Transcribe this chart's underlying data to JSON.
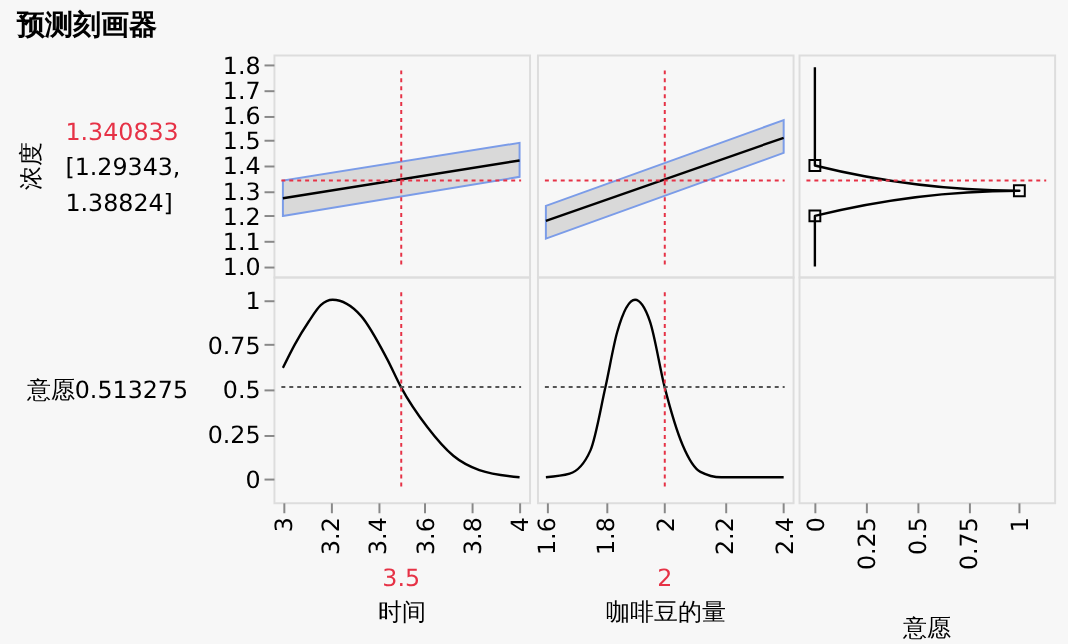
{
  "chart_data": [
    {
      "type": "line",
      "title": "预测刻画器",
      "ylabel": "浓度",
      "xlim": [
        2.96,
        4.04
      ],
      "ylim": [
        0.96,
        1.84
      ],
      "yticks": [
        {
          "value": 1,
          "label": "1.0"
        },
        1.1,
        1.2,
        1.3,
        1.4,
        1.5,
        1.6,
        1.7,
        1.8
      ],
      "tick_labels": "y",
      "grid": false,
      "series": [
        {
          "color": "#000000",
          "x": [
            3,
            4
          ],
          "values": [
            1.27,
            1.42
          ],
          "lower": [
            1.2,
            1.355
          ],
          "upper": [
            1.34,
            1.49
          ],
          "marker": "none"
        }
      ],
      "ref_lines": [
        {
          "axis": "x",
          "value": 3.5,
          "color": "#e63246",
          "line_style": "dotted"
        },
        {
          "axis": "y",
          "value": 1.340833,
          "label": "1.340833",
          "color": "#e63246",
          "line_style": "dotted"
        }
      ],
      "annotations": [
        "[1.29343, 1.38824]"
      ]
    },
    {
      "type": "line",
      "xlim": [
        1.57,
        2.43
      ],
      "ylim": [
        0.96,
        1.84
      ],
      "tick_labels": false,
      "grid": false,
      "series": [
        {
          "color": "#000000",
          "x": [
            1.6,
            2.4
          ],
          "values": [
            1.18,
            1.51
          ],
          "lower": [
            1.11,
            1.45
          ],
          "upper": [
            1.24,
            1.58
          ],
          "marker": "none"
        }
      ],
      "ref_lines": [
        {
          "axis": "x",
          "value": 2,
          "color": "#e63246",
          "line_style": "dotted"
        },
        {
          "axis": "y",
          "value": 1.340833,
          "color": "#e63246",
          "line_style": "dotted"
        }
      ]
    },
    {
      "type": "line",
      "xlim": [
        -0.08,
        1.17
      ],
      "ylim": [
        0.96,
        1.84
      ],
      "tick_labels": false,
      "grid": false,
      "series": [
        {
          "type": "line",
          "color": "#000000",
          "x": [
            0,
            0,
            1,
            0,
            0
          ],
          "values": [
            1.79,
            1.4,
            1.3,
            1.2,
            1.0
          ],
          "marker": "none"
        },
        {
          "type": "scatter",
          "color": "#000000",
          "x": [
            0,
            1,
            0
          ],
          "values": [
            1.4,
            1.3,
            1.2
          ],
          "marker": "square"
        }
      ],
      "ref_lines": [
        {
          "axis": "y",
          "value": 1.340833,
          "color": "#e63246",
          "line_style": "dotted"
        }
      ]
    },
    {
      "type": "line",
      "ylabel": "意愿0.513275",
      "xlabel": "时间",
      "xlim": [
        2.96,
        4.04
      ],
      "ylim": [
        -0.13,
        1.13
      ],
      "xticks": [
        3,
        3.2,
        3.4,
        3.6,
        3.8,
        4
      ],
      "yticks": [
        0,
        0.25,
        0.5,
        0.75,
        1
      ],
      "grid": false,
      "series": [
        {
          "color": "#000000",
          "x": [
            3,
            3.05,
            3.11,
            3.16,
            3.21,
            3.33,
            3.44,
            3.5,
            3.61,
            3.72,
            3.83,
            4
          ],
          "values": [
            0.62,
            0.75,
            0.88,
            0.97,
            1.0,
            0.91,
            0.67,
            0.51,
            0.29,
            0.13,
            0.05,
            0.01
          ],
          "marker": "none"
        }
      ],
      "ref_lines": [
        {
          "axis": "x",
          "value": 3.5,
          "label": "3.5",
          "color": "#e63246",
          "line_style": "dotted"
        },
        {
          "axis": "y",
          "value": 0.513275,
          "color": "#555555",
          "line_style": "dotted"
        }
      ]
    },
    {
      "type": "line",
      "xlabel": "咖啡豆的量",
      "xlim": [
        1.57,
        2.43
      ],
      "ylim": [
        -0.13,
        1.13
      ],
      "xticks": [
        1.6,
        1.8,
        2,
        2.2,
        2.4
      ],
      "tick_labels": "x",
      "grid": false,
      "series": [
        {
          "color": "#000000",
          "x": [
            1.6,
            1.68,
            1.75,
            1.8,
            1.84,
            1.9,
            1.95,
            2.0,
            2.06,
            2.12,
            2.19,
            2.4
          ],
          "values": [
            0.01,
            0.03,
            0.16,
            0.51,
            0.82,
            1.0,
            0.88,
            0.51,
            0.19,
            0.04,
            0.01,
            0.01
          ],
          "marker": "none"
        }
      ],
      "ref_lines": [
        {
          "axis": "x",
          "value": 2,
          "label": "2",
          "color": "#e63246",
          "line_style": "dotted"
        },
        {
          "axis": "y",
          "value": 0.513275,
          "color": "#555555",
          "line_style": "dotted"
        }
      ]
    },
    {
      "type": "line",
      "xlabel": "意愿",
      "xlim": [
        -0.08,
        1.17
      ],
      "ylim": [
        -0.13,
        1.13
      ],
      "xticks": [
        0,
        0.25,
        0.5,
        0.75,
        1
      ],
      "tick_labels": "x",
      "grid": false
    }
  ]
}
